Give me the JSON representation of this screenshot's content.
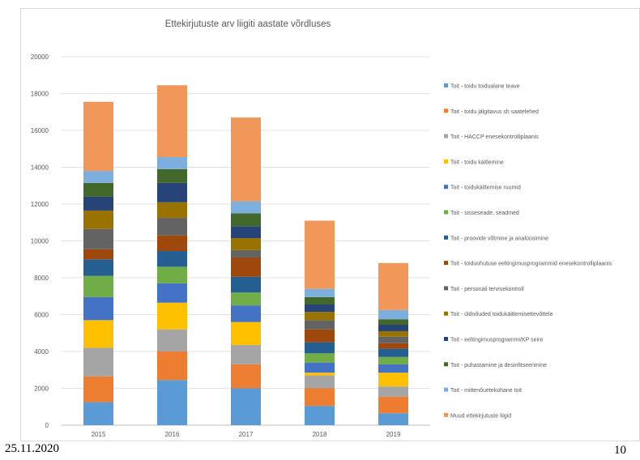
{
  "footer": {
    "date": "25.11.2020",
    "page_number": "10"
  },
  "chart_data": {
    "type": "bar",
    "stacked": true,
    "title": "Ettekirjutuste arv liigiti aastate võrdluses",
    "xlabel": "",
    "ylabel": "",
    "ylim": [
      0,
      20000
    ],
    "yticks": [
      0,
      2000,
      4000,
      6000,
      8000,
      10000,
      12000,
      14000,
      16000,
      18000,
      20000
    ],
    "grid": true,
    "legend_position": "right",
    "categories": [
      "2015",
      "2016",
      "2017",
      "2018",
      "2019"
    ],
    "series": [
      {
        "name": "Toit - toidu toidualane teave",
        "color": "#5b9bd5",
        "values": [
          1250,
          2450,
          2000,
          1050,
          650
        ]
      },
      {
        "name": "Toit - toidu jälgitavus  sh saatelehed",
        "color": "#ed7d31",
        "values": [
          1400,
          1550,
          1300,
          950,
          900
        ]
      },
      {
        "name": "Toit - HACCP enesekontrolliplaanis",
        "color": "#a5a5a5",
        "values": [
          1550,
          1200,
          1050,
          700,
          550
        ]
      },
      {
        "name": "Toit - toidu käitlemine",
        "color": "#ffc000",
        "values": [
          1500,
          1450,
          1250,
          150,
          750
        ]
      },
      {
        "name": "Toit - toidukäitlemise ruumid",
        "color": "#4472c4",
        "values": [
          1250,
          1050,
          900,
          550,
          450
        ]
      },
      {
        "name": "Toit - sisseseade, seadmed",
        "color": "#70ad47",
        "values": [
          1150,
          900,
          700,
          500,
          400
        ]
      },
      {
        "name": "Toit - proovide võtmine ja analüüsimine",
        "color": "#255e91",
        "values": [
          900,
          850,
          850,
          600,
          450
        ]
      },
      {
        "name": "Toit - toiduohutuse eeltingimusprogrammid enesekontrolliplaanis",
        "color": "#9e480e",
        "values": [
          550,
          850,
          1050,
          700,
          300
        ]
      },
      {
        "name": "Toit - personali tervisekontroll",
        "color": "#636363",
        "values": [
          1100,
          950,
          400,
          500,
          350
        ]
      },
      {
        "name": "Toit - üldnõuded toidukäitlemisettevõttele",
        "color": "#997300",
        "values": [
          1000,
          850,
          650,
          450,
          300
        ]
      },
      {
        "name": "Toit - eeltingimusprogrammi/KP seire",
        "color": "#264478",
        "values": [
          750,
          1050,
          650,
          400,
          350
        ]
      },
      {
        "name": "Toit - puhastamine ja desinfitseerimine",
        "color": "#43682b",
        "values": [
          750,
          750,
          700,
          400,
          300
        ]
      },
      {
        "name": "Toit - mittenõuetekohane toit",
        "color": "#7cafdd",
        "values": [
          650,
          650,
          650,
          450,
          500
        ]
      },
      {
        "name": "Muud ettekirjutuste liigid",
        "color": "#f1975a",
        "values": [
          3750,
          3900,
          4550,
          3700,
          2550
        ]
      }
    ]
  }
}
